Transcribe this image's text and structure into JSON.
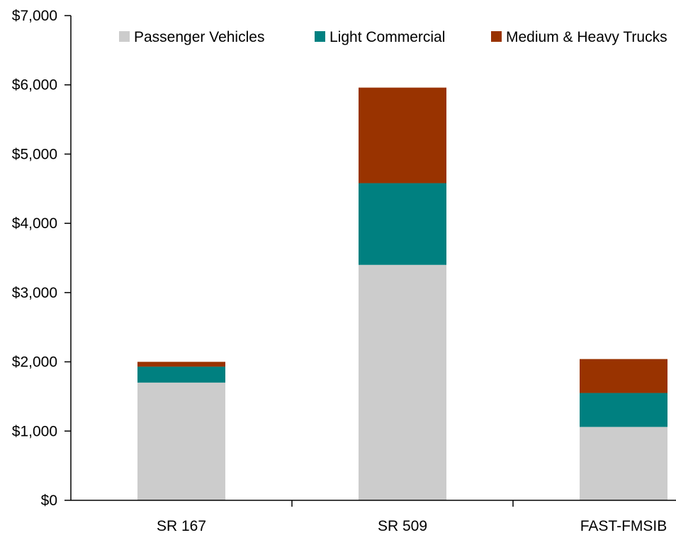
{
  "chart_data": {
    "type": "bar",
    "stacked": true,
    "title": "",
    "xlabel": "",
    "ylabel": "",
    "categories": [
      "SR 167",
      "SR 509",
      "FAST-FMSIB"
    ],
    "series": [
      {
        "name": "Passenger Vehicles",
        "color": "#cccccc",
        "values": [
          1700,
          3400,
          1060
        ]
      },
      {
        "name": "Light Commercial",
        "color": "#008080",
        "values": [
          230,
          1180,
          490
        ]
      },
      {
        "name": "Medium & Heavy Trucks",
        "color": "#993300",
        "values": [
          70,
          1380,
          490
        ]
      }
    ],
    "ylim": [
      0,
      7000
    ],
    "yticks": [
      0,
      1000,
      2000,
      3000,
      4000,
      5000,
      6000,
      7000
    ],
    "ytick_labels": [
      "$0",
      "$1,000",
      "$2,000",
      "$3,000",
      "$4,000",
      "$5,000",
      "$6,000",
      "$7,000"
    ],
    "grid": false,
    "legend_position": "top"
  }
}
